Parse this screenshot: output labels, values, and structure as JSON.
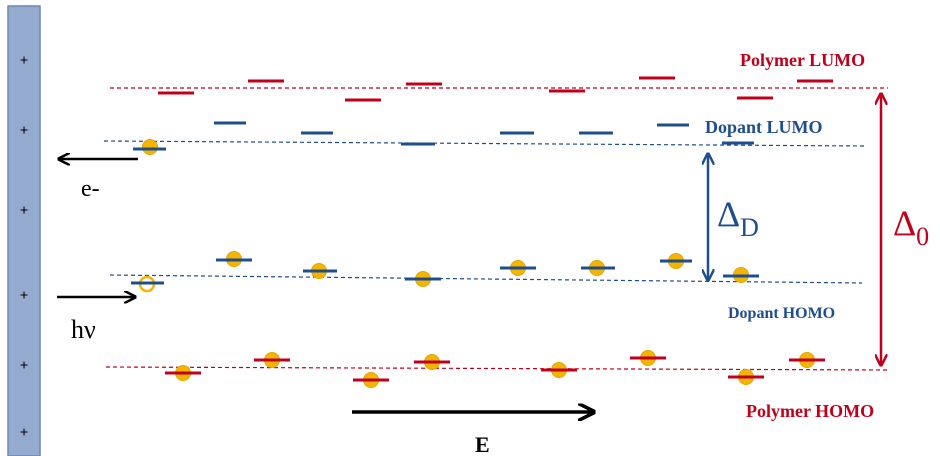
{
  "labels": {
    "polymer_lumo": "Polymer LUMO",
    "dopant_lumo": "Dopant LUMO",
    "dopant_homo": "Dopant HOMO",
    "polymer_homo": "Polymer HOMO",
    "electron": "e-",
    "photon": "hν",
    "field": "E",
    "delta_d_symbol": "Δ",
    "delta_d_subscript": "D",
    "delta_0_symbol": "Δ",
    "delta_0_subscript": "0",
    "electrode_charge": "+"
  },
  "colors": {
    "polymer": "#c0001a",
    "dopant": "#1f4e8c",
    "electrode_fill": "#94aacf",
    "electrode_edge": "#6f86b3",
    "electron_dot": "#f5b400",
    "arrow": "#000000"
  }
}
